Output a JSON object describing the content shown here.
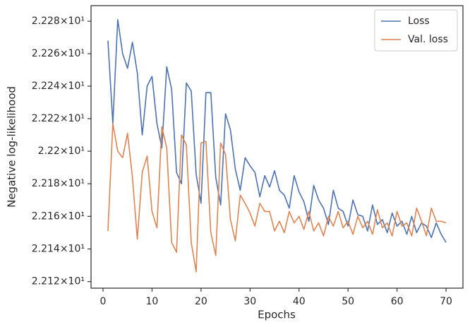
{
  "chart_data": {
    "type": "line",
    "xlabel": "Epochs",
    "ylabel": "Negative log-likelihood",
    "x": [
      1,
      2,
      3,
      4,
      5,
      6,
      7,
      8,
      9,
      10,
      11,
      12,
      13,
      14,
      15,
      16,
      17,
      18,
      19,
      20,
      21,
      22,
      23,
      24,
      25,
      26,
      27,
      28,
      29,
      30,
      31,
      32,
      33,
      34,
      35,
      36,
      37,
      38,
      39,
      40,
      41,
      42,
      43,
      44,
      45,
      46,
      47,
      48,
      49,
      50,
      51,
      52,
      53,
      54,
      55,
      56,
      57,
      58,
      59,
      60,
      61,
      62,
      63,
      64,
      65,
      66,
      67,
      68,
      69,
      70
    ],
    "series": [
      {
        "name": "Loss",
        "color": "#4c72b0",
        "values": [
          22.268,
          22.217,
          22.281,
          22.26,
          22.251,
          22.267,
          22.248,
          22.21,
          22.24,
          22.246,
          22.217,
          22.202,
          22.252,
          22.238,
          22.187,
          22.18,
          22.242,
          22.237,
          22.186,
          22.168,
          22.236,
          22.236,
          22.184,
          22.167,
          22.223,
          22.213,
          22.189,
          22.176,
          22.196,
          22.191,
          22.187,
          22.172,
          22.185,
          22.178,
          22.188,
          22.176,
          22.173,
          22.165,
          22.185,
          22.175,
          22.169,
          22.157,
          22.179,
          22.17,
          22.165,
          22.155,
          22.176,
          22.165,
          22.163,
          22.154,
          22.17,
          22.161,
          22.16,
          22.151,
          22.167,
          22.155,
          22.158,
          22.15,
          22.162,
          22.154,
          22.157,
          22.149,
          22.16,
          22.15,
          22.156,
          22.154,
          22.147,
          22.156,
          22.149,
          22.144
        ]
      },
      {
        "name": "Val. loss",
        "color": "#dd8452",
        "values": [
          22.151,
          22.217,
          22.2,
          22.196,
          22.211,
          22.184,
          22.146,
          22.187,
          22.197,
          22.163,
          22.153,
          22.215,
          22.202,
          22.144,
          22.138,
          22.21,
          22.204,
          22.144,
          22.126,
          22.205,
          22.206,
          22.15,
          22.136,
          22.205,
          22.198,
          22.158,
          22.145,
          22.173,
          22.168,
          22.162,
          22.154,
          22.168,
          22.163,
          22.163,
          22.151,
          22.157,
          22.15,
          22.163,
          22.156,
          22.16,
          22.152,
          22.163,
          22.151,
          22.156,
          22.148,
          22.16,
          22.154,
          22.163,
          22.153,
          22.157,
          22.149,
          22.16,
          22.153,
          22.157,
          22.149,
          22.164,
          22.153,
          22.156,
          22.148,
          22.163,
          22.154,
          22.156,
          22.148,
          22.165,
          22.157,
          22.148,
          22.165,
          22.157,
          22.157,
          22.156
        ]
      }
    ],
    "xlim": [
      -2.45,
      73.45
    ],
    "xticks": [
      0,
      10,
      20,
      30,
      40,
      50,
      60,
      70
    ],
    "ylim": [
      22.116,
      22.2896
    ],
    "yscale": "log",
    "yticks": [
      {
        "value": 22.12,
        "label": "2.212×10¹"
      },
      {
        "value": 22.14,
        "label": "2.214×10¹"
      },
      {
        "value": 22.16,
        "label": "2.216×10¹"
      },
      {
        "value": 22.18,
        "label": "2.218×10¹"
      },
      {
        "value": 22.2,
        "label": "2.22×10¹"
      },
      {
        "value": 22.22,
        "label": "2.222×10¹"
      },
      {
        "value": 22.24,
        "label": "2.224×10¹"
      },
      {
        "value": 22.26,
        "label": "2.226×10¹"
      },
      {
        "value": 22.28,
        "label": "2.228×10¹"
      }
    ],
    "legend": "upper right",
    "grid": false
  }
}
